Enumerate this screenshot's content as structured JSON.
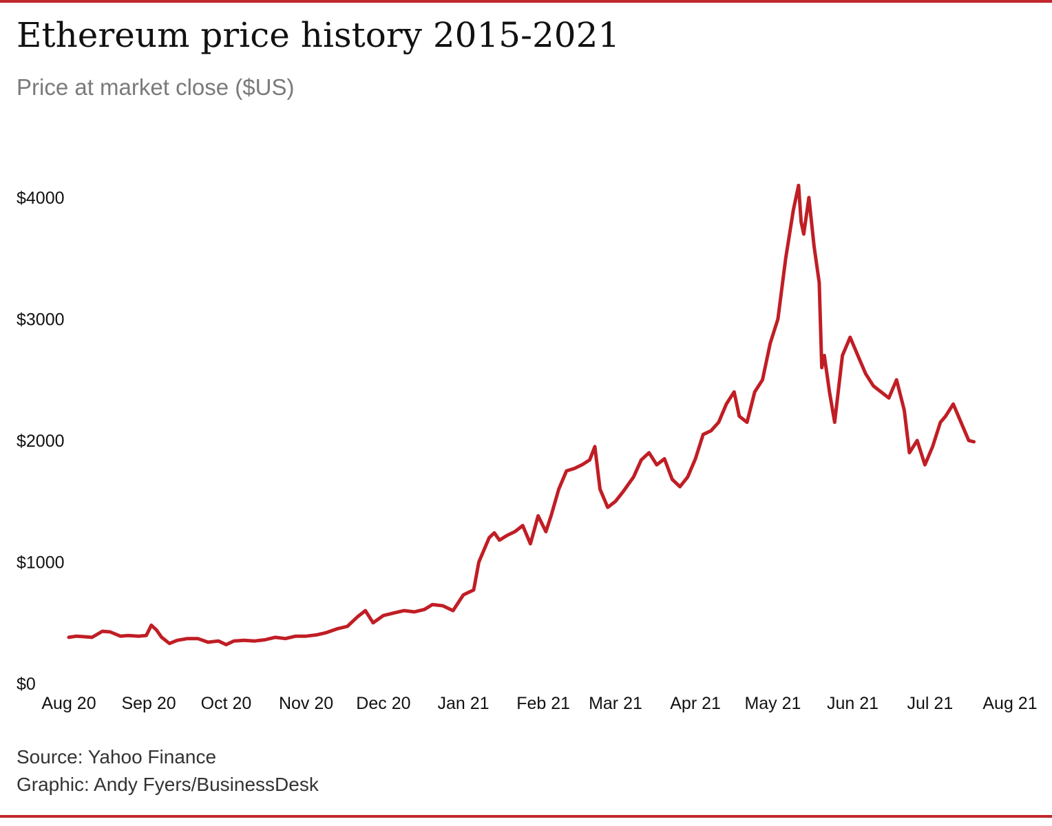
{
  "title": "Ethereum price history 2015-2021",
  "subtitle": "Price at market close ($US)",
  "footer": {
    "source": "Source: Yahoo Finance",
    "graphic": "Graphic: Andy Fyers/BusinessDesk"
  },
  "colors": {
    "accent": "#b81d24",
    "line": "#c01e25",
    "rule": "#c0282e"
  },
  "chart_data": {
    "type": "line",
    "title": "Ethereum price history 2015-2021",
    "subtitle": "Price at market close ($US)",
    "xlabel": "",
    "ylabel": "",
    "ylim": [
      0,
      4200
    ],
    "xlim": [
      "2020-08-01",
      "2021-08-01"
    ],
    "y_ticks": [
      0,
      1000,
      2000,
      3000,
      4000
    ],
    "y_tick_labels": [
      "$0",
      "$1000",
      "$2000",
      "$3000",
      "$4000"
    ],
    "x_ticks": [
      "2020-08-01",
      "2020-09-01",
      "2020-10-01",
      "2020-11-01",
      "2020-12-01",
      "2021-01-01",
      "2021-02-01",
      "2021-03-01",
      "2021-04-01",
      "2021-05-01",
      "2021-06-01",
      "2021-07-01",
      "2021-08-01"
    ],
    "x_tick_labels": [
      "Aug 20",
      "Sep 20",
      "Oct 20",
      "Nov 20",
      "Dec 20",
      "Jan 21",
      "Feb 21",
      "Mar 21",
      "Apr 21",
      "May 21",
      "Jun 21",
      "Jul 21",
      "Aug 21"
    ],
    "grid": false,
    "legend": "none",
    "series": [
      {
        "x": [
          "2020-08-01",
          "2020-08-04",
          "2020-08-07",
          "2020-08-10",
          "2020-08-14",
          "2020-08-17",
          "2020-08-21",
          "2020-08-24",
          "2020-08-28",
          "2020-08-31",
          "2020-09-02",
          "2020-09-04",
          "2020-09-06",
          "2020-09-09",
          "2020-09-12",
          "2020-09-16",
          "2020-09-20",
          "2020-09-24",
          "2020-09-28",
          "2020-10-01",
          "2020-10-04",
          "2020-10-08",
          "2020-10-12",
          "2020-10-16",
          "2020-10-20",
          "2020-10-24",
          "2020-10-28",
          "2020-11-01",
          "2020-11-05",
          "2020-11-09",
          "2020-11-13",
          "2020-11-17",
          "2020-11-21",
          "2020-11-24",
          "2020-11-27",
          "2020-12-01",
          "2020-12-05",
          "2020-12-09",
          "2020-12-13",
          "2020-12-17",
          "2020-12-20",
          "2020-12-24",
          "2020-12-28",
          "2021-01-01",
          "2021-01-03",
          "2021-01-05",
          "2021-01-07",
          "2021-01-09",
          "2021-01-11",
          "2021-01-13",
          "2021-01-15",
          "2021-01-18",
          "2021-01-21",
          "2021-01-24",
          "2021-01-27",
          "2021-01-30",
          "2021-02-02",
          "2021-02-04",
          "2021-02-07",
          "2021-02-10",
          "2021-02-13",
          "2021-02-16",
          "2021-02-19",
          "2021-02-21",
          "2021-02-23",
          "2021-02-26",
          "2021-03-01",
          "2021-03-04",
          "2021-03-08",
          "2021-03-11",
          "2021-03-14",
          "2021-03-17",
          "2021-03-20",
          "2021-03-23",
          "2021-03-26",
          "2021-03-29",
          "2021-04-01",
          "2021-04-04",
          "2021-04-07",
          "2021-04-10",
          "2021-04-13",
          "2021-04-16",
          "2021-04-18",
          "2021-04-21",
          "2021-04-24",
          "2021-04-27",
          "2021-04-30",
          "2021-05-03",
          "2021-05-06",
          "2021-05-09",
          "2021-05-11",
          "2021-05-12",
          "2021-05-13",
          "2021-05-15",
          "2021-05-17",
          "2021-05-19",
          "2021-05-20",
          "2021-05-21",
          "2021-05-23",
          "2021-05-25",
          "2021-05-28",
          "2021-05-31",
          "2021-06-03",
          "2021-06-06",
          "2021-06-09",
          "2021-06-12",
          "2021-06-15",
          "2021-06-18",
          "2021-06-21",
          "2021-06-23",
          "2021-06-26",
          "2021-06-29",
          "2021-07-02",
          "2021-07-05",
          "2021-07-07",
          "2021-07-10",
          "2021-07-13",
          "2021-07-16",
          "2021-07-18"
        ],
        "values": [
          380,
          390,
          385,
          380,
          430,
          425,
          390,
          395,
          390,
          395,
          480,
          440,
          380,
          330,
          355,
          370,
          370,
          340,
          350,
          320,
          350,
          355,
          350,
          360,
          380,
          370,
          390,
          390,
          400,
          420,
          450,
          470,
          550,
          600,
          500,
          560,
          580,
          600,
          590,
          610,
          650,
          640,
          600,
          730,
          750,
          770,
          1000,
          1100,
          1200,
          1240,
          1180,
          1220,
          1250,
          1300,
          1150,
          1380,
          1250,
          1380,
          1600,
          1750,
          1770,
          1800,
          1840,
          1950,
          1600,
          1450,
          1500,
          1580,
          1700,
          1840,
          1900,
          1800,
          1850,
          1680,
          1620,
          1700,
          1850,
          2050,
          2080,
          2150,
          2300,
          2400,
          2200,
          2150,
          2400,
          2500,
          2800,
          3000,
          3500,
          3900,
          4100,
          3800,
          3700,
          4000,
          3600,
          3300,
          2600,
          2700,
          2400,
          2150,
          2700,
          2850,
          2700,
          2550,
          2450,
          2400,
          2350,
          2500,
          2250,
          1900,
          2000,
          1800,
          1950,
          2150,
          2200,
          2300,
          2150,
          2000,
          1990
        ]
      }
    ]
  }
}
